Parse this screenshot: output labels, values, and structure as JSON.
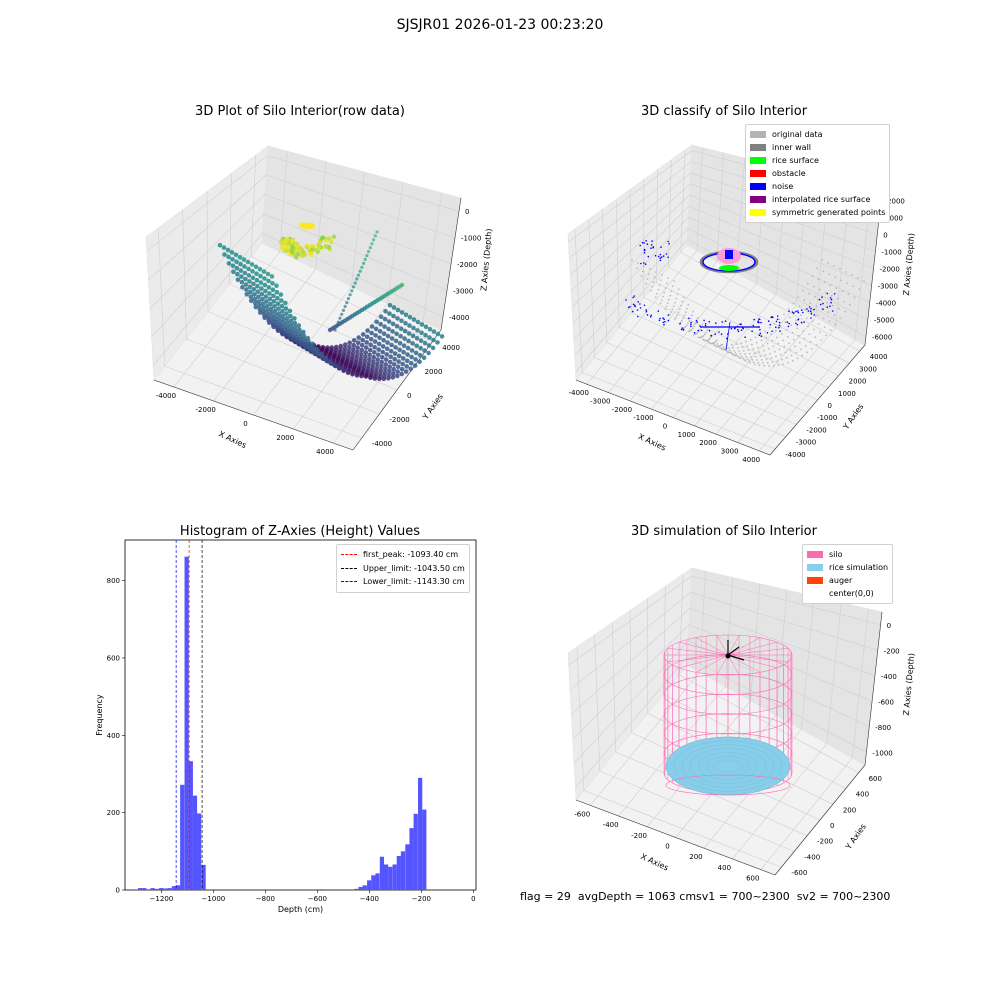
{
  "figure": {
    "title": "SJSJR01 2026-01-23 00:23:20",
    "footer_text": "flag = 29  avgDepth = 1063 cmsv1 = 700~2300  sv2 = 700~2300"
  },
  "colors": {
    "original_data": "#b3b3b3",
    "inner_wall": "#808080",
    "rice_surface": "#00ff00",
    "obstacle": "#ff0000",
    "noise": "#0000ff",
    "interpolated": "#800080",
    "symmetric": "#ffff00",
    "silo": "#ff69b4",
    "rice_sim": "#87ceeb",
    "auger": "#ff4500",
    "hist_bar": "#5555ff"
  },
  "chart_data": [
    {
      "type": "scatter",
      "title": "3D Plot of Silo Interior(row data)",
      "xlabel": "X Axies",
      "ylabel": "Y Axies",
      "zlabel": "Z Axies (Depth)",
      "x_ticks": [
        "-4000",
        "-2000",
        "0",
        "2000",
        "4000"
      ],
      "y_ticks": [
        "-4000",
        "-2000",
        "0",
        "2000",
        "4000"
      ],
      "z_ticks": [
        "0",
        "-1000",
        "-2000",
        "-3000",
        "-4000"
      ],
      "xlim": [
        -4500,
        4500
      ],
      "ylim": [
        -4500,
        4500
      ],
      "zlim": [
        -4500,
        0
      ],
      "colormap": "viridis"
    },
    {
      "type": "scatter",
      "title": "3D classify of Silo Interior",
      "xlabel": "X Axies",
      "ylabel": "Y Axies",
      "zlabel": "Z Axies (Depth)",
      "x_ticks": [
        "-4000",
        "-3000",
        "-2000",
        "-1000",
        "0",
        "1000",
        "2000",
        "3000",
        "4000"
      ],
      "y_ticks": [
        "-4000",
        "-3000",
        "-2000",
        "-1000",
        "0",
        "1000",
        "2000",
        "3000",
        "4000"
      ],
      "z_ticks": [
        "2000",
        "1000",
        "0",
        "-1000",
        "-2000",
        "-3000",
        "-4000",
        "-5000",
        "-6000"
      ],
      "legend": [
        "original data",
        "inner wall",
        "rice surface",
        "obstacle",
        "noise",
        "interpolated rice surface",
        "symmetric generated points"
      ],
      "legend_position": "upper-right"
    },
    {
      "type": "bar",
      "title": "Histogram of Z-Axies (Height) Values",
      "xlabel": "Depth (cm)",
      "ylabel": "Frequency",
      "xlim": [
        -1340,
        10
      ],
      "ylim": [
        0,
        905
      ],
      "x_ticks": [
        -1200,
        -1000,
        -800,
        -600,
        -400,
        -200,
        0
      ],
      "y_ticks": [
        0,
        200,
        400,
        600,
        800
      ],
      "bin_width": 16.3,
      "bins": [
        {
          "x": -1290,
          "v": 5
        },
        {
          "x": -1274,
          "v": 5
        },
        {
          "x": -1258,
          "v": 2
        },
        {
          "x": -1242,
          "v": 5
        },
        {
          "x": -1226,
          "v": 3
        },
        {
          "x": -1209,
          "v": 5
        },
        {
          "x": -1193,
          "v": 4
        },
        {
          "x": -1177,
          "v": 5
        },
        {
          "x": -1160,
          "v": 10
        },
        {
          "x": -1144,
          "v": 12
        },
        {
          "x": -1128,
          "v": 272
        },
        {
          "x": -1111,
          "v": 862
        },
        {
          "x": -1095,
          "v": 333
        },
        {
          "x": -1079,
          "v": 244
        },
        {
          "x": -1063,
          "v": 198
        },
        {
          "x": -1046,
          "v": 65
        },
        {
          "x": -1030,
          "v": 0
        },
        {
          "x": -1014,
          "v": 0
        },
        {
          "x": -997,
          "v": 0
        },
        {
          "x": -981,
          "v": 0
        },
        {
          "x": -965,
          "v": 0
        },
        {
          "x": -948,
          "v": 0
        },
        {
          "x": -932,
          "v": 0
        },
        {
          "x": -916,
          "v": 0
        },
        {
          "x": -899,
          "v": 0
        },
        {
          "x": -883,
          "v": 0
        },
        {
          "x": -867,
          "v": 0
        },
        {
          "x": -850,
          "v": 0
        },
        {
          "x": -834,
          "v": 0
        },
        {
          "x": -818,
          "v": 0
        },
        {
          "x": -801,
          "v": 0
        },
        {
          "x": -785,
          "v": 0
        },
        {
          "x": -769,
          "v": 0
        },
        {
          "x": -752,
          "v": 0
        },
        {
          "x": -736,
          "v": 0
        },
        {
          "x": -720,
          "v": 0
        },
        {
          "x": -703,
          "v": 0
        },
        {
          "x": -687,
          "v": 0
        },
        {
          "x": -671,
          "v": 0
        },
        {
          "x": -654,
          "v": 0
        },
        {
          "x": -638,
          "v": 0
        },
        {
          "x": -622,
          "v": 0
        },
        {
          "x": -605,
          "v": 0
        },
        {
          "x": -589,
          "v": 2
        },
        {
          "x": -573,
          "v": 0
        },
        {
          "x": -556,
          "v": 0
        },
        {
          "x": -540,
          "v": 0
        },
        {
          "x": -524,
          "v": 0
        },
        {
          "x": -507,
          "v": 0
        },
        {
          "x": -491,
          "v": 0
        },
        {
          "x": -475,
          "v": 0
        },
        {
          "x": -458,
          "v": 3
        },
        {
          "x": -442,
          "v": 8
        },
        {
          "x": -426,
          "v": 12
        },
        {
          "x": -409,
          "v": 25
        },
        {
          "x": -393,
          "v": 38
        },
        {
          "x": -377,
          "v": 43
        },
        {
          "x": -360,
          "v": 86
        },
        {
          "x": -344,
          "v": 66
        },
        {
          "x": -328,
          "v": 60
        },
        {
          "x": -311,
          "v": 66
        },
        {
          "x": -295,
          "v": 88
        },
        {
          "x": -279,
          "v": 100
        },
        {
          "x": -262,
          "v": 118
        },
        {
          "x": -246,
          "v": 160
        },
        {
          "x": -230,
          "v": 197
        },
        {
          "x": -213,
          "v": 290
        },
        {
          "x": -197,
          "v": 208
        }
      ],
      "reference_lines": [
        {
          "label": "first_peak: -1093.40 cm",
          "x": -1093.4,
          "color": "#ff0000"
        },
        {
          "label": "Upper_limit: -1043.50 cm",
          "x": -1043.5,
          "color": "#000000"
        },
        {
          "label": "Lower_limit: -1143.30 cm",
          "x": -1143.3,
          "color": "#0000ff"
        }
      ],
      "legend_position": "upper-right"
    },
    {
      "type": "scatter",
      "title": "3D simulation of Silo Interior",
      "xlabel": "X Axies",
      "ylabel": "Y Axies",
      "zlabel": "Z Axies (Depth)",
      "x_ticks": [
        "-600",
        "-400",
        "-200",
        "0",
        "200",
        "400",
        "600"
      ],
      "y_ticks": [
        "-600",
        "-400",
        "-200",
        "0",
        "200",
        "400",
        "600"
      ],
      "z_ticks": [
        "0",
        "-200",
        "-400",
        "-600",
        "-800",
        "-1000"
      ],
      "legend": [
        "silo",
        "rice simulation",
        "auger",
        "center(0,0)"
      ],
      "legend_position": "upper-right"
    }
  ]
}
